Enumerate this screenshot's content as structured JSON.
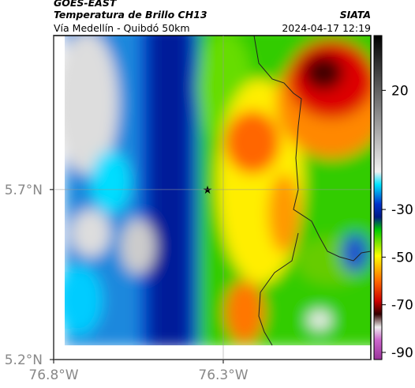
{
  "header": {
    "satellite": "GOES-EAST",
    "product": "Temperatura de Brillo CH13",
    "region": "Vía Medellín - Quibdó 50km",
    "source": "SIATA",
    "timestamp": "2024-04-17 12:19"
  },
  "map": {
    "xlim": [
      -76.8,
      -75.865
    ],
    "ylim": [
      5.2,
      6.153
    ],
    "xticks": [
      {
        "value": -76.8,
        "label": "76.8°W"
      },
      {
        "value": -76.3,
        "label": "76.3°W"
      }
    ],
    "yticks": [
      {
        "value": 5.2,
        "label": "5.2°N"
      },
      {
        "value": 5.7,
        "label": "5.7°N"
      }
    ],
    "grid": true
  },
  "colorbar": {
    "lim": [
      -93,
      43
    ],
    "ticks": [
      20,
      -30,
      -50,
      -70,
      -90
    ]
  }
}
